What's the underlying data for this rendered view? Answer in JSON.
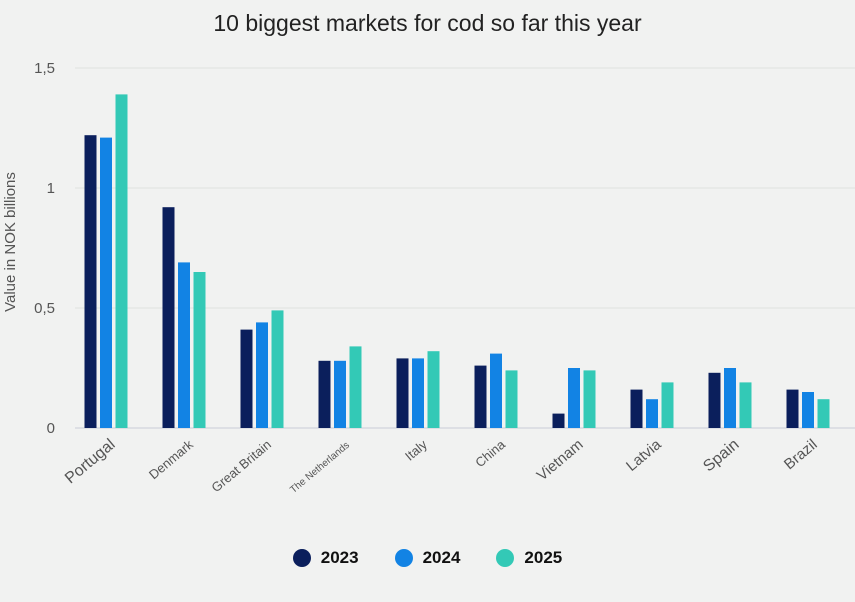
{
  "chart_data": {
    "type": "bar",
    "title": "10 biggest markets for cod so far this year",
    "xlabel": "",
    "ylabel": "Value in NOK billions",
    "ylim": [
      0,
      1.5
    ],
    "yticks": [
      {
        "value": 0,
        "label": "0"
      },
      {
        "value": 0.5,
        "label": "0,5"
      },
      {
        "value": 1,
        "label": "1"
      },
      {
        "value": 1.5,
        "label": "1,5"
      }
    ],
    "grid": true,
    "legend_position": "bottom",
    "categories": [
      "Portugal",
      "Denmark",
      "Great Britain",
      "The Netherlands",
      "Italy",
      "China",
      "Vietnam",
      "Latvia",
      "Spain",
      "Brazil"
    ],
    "series": [
      {
        "name": "2023",
        "color": "#0b1f5c",
        "values": [
          1.22,
          0.92,
          0.41,
          0.28,
          0.29,
          0.26,
          0.06,
          0.16,
          0.23,
          0.16
        ]
      },
      {
        "name": "2024",
        "color": "#1283e4",
        "values": [
          1.21,
          0.69,
          0.44,
          0.28,
          0.29,
          0.31,
          0.25,
          0.12,
          0.25,
          0.15
        ]
      },
      {
        "name": "2025",
        "color": "#33c9b6",
        "values": [
          1.39,
          0.65,
          0.49,
          0.34,
          0.32,
          0.24,
          0.24,
          0.19,
          0.19,
          0.12
        ]
      }
    ]
  }
}
